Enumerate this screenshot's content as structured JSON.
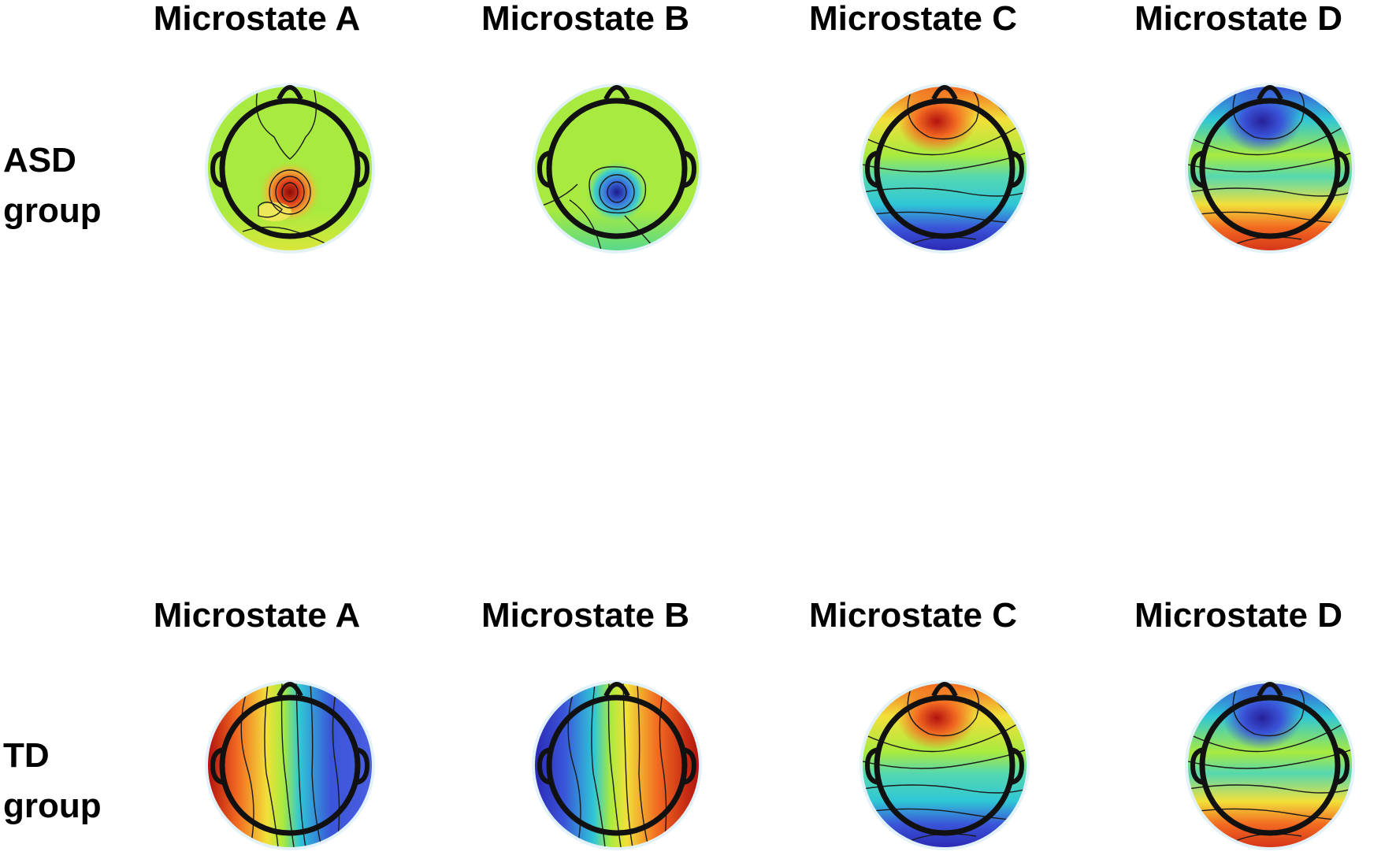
{
  "figure": {
    "rows": [
      {
        "label_line1": "ASD",
        "label_line2": "group",
        "maps": [
          {
            "title": "Microstate A",
            "pattern": "asd-a"
          },
          {
            "title": "Microstate B",
            "pattern": "asd-b"
          },
          {
            "title": "Microstate C",
            "pattern": "front-pos"
          },
          {
            "title": "Microstate D",
            "pattern": "front-neg"
          }
        ]
      },
      {
        "label_line1": "TD",
        "label_line2": "group",
        "maps": [
          {
            "title": "Microstate A",
            "pattern": "left-pos"
          },
          {
            "title": "Microstate B",
            "pattern": "left-neg"
          },
          {
            "title": "Microstate C",
            "pattern": "front-pos"
          },
          {
            "title": "Microstate D",
            "pattern": "front-neg"
          }
        ]
      }
    ],
    "colors": {
      "red": "#b3120f",
      "orange": "#f26a21",
      "yellow": "#f2e03a",
      "green": "#a8ea3f",
      "cyan": "#2fc6d6",
      "blue": "#3a55d9",
      "darkblue": "#27209a",
      "contour": "#1a1a1a",
      "halo": "#e3f2f8"
    }
  }
}
